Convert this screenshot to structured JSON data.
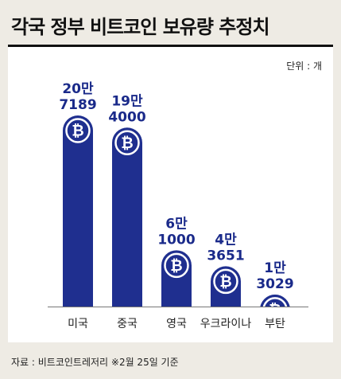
{
  "title": "각국 정부 비트코인 보유량 추정치",
  "unit_label": "단위 : 개",
  "source": "자료 : 비트코인트레저리 ※2월 25일 기준",
  "colors": {
    "bar": "#1f2f8f",
    "background": "#eeebe4",
    "panel": "#ffffff",
    "coin_ring": "#ffffff"
  },
  "chart_data": {
    "type": "bar",
    "categories": [
      "미국",
      "중국",
      "영국",
      "우크라이나",
      "부탄"
    ],
    "values": [
      207189,
      194000,
      61000,
      43651,
      13029
    ],
    "value_labels": [
      [
        "20만",
        "7189"
      ],
      [
        "19만",
        "4000"
      ],
      [
        "6만",
        "1000"
      ],
      [
        "4만",
        "3651"
      ],
      [
        "1만",
        "3029"
      ]
    ],
    "title": "각국 정부 비트코인 보유량 추정치",
    "xlabel": "",
    "ylabel": "",
    "unit": "개",
    "icon": "bitcoin-icon",
    "grid": false
  }
}
